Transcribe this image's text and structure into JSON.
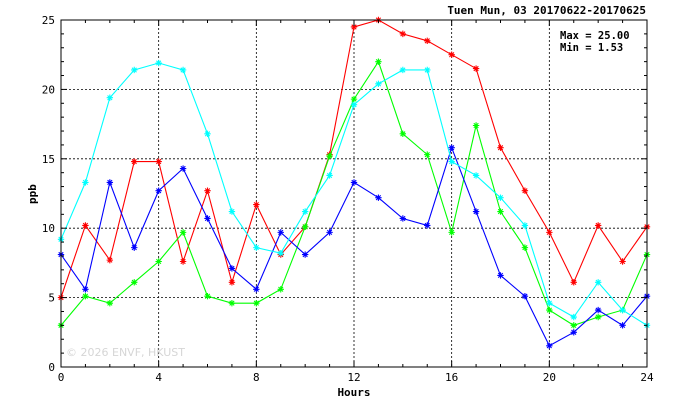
{
  "header": {
    "title": "Tuen Mun, 03 20170622-20170625"
  },
  "stats": {
    "max_label": "Max = 25.00",
    "min_label": "Min =  1.53"
  },
  "watermark": "© 2026  ENVF, HKUST",
  "chart_data": {
    "type": "line",
    "xlabel": "Hours",
    "ylabel": "ppb",
    "xlim": [
      0,
      24
    ],
    "ylim": [
      0,
      25
    ],
    "xticks": [
      0,
      4,
      8,
      12,
      16,
      20,
      24
    ],
    "yticks": [
      0,
      5,
      10,
      15,
      20,
      25
    ],
    "grid": true,
    "marker": "asterisk",
    "x": [
      0,
      1,
      2,
      3,
      4,
      5,
      6,
      7,
      8,
      9,
      10,
      11,
      12,
      13,
      14,
      15,
      16,
      17,
      18,
      19,
      20,
      21,
      22,
      23,
      24
    ],
    "series": [
      {
        "color": "#ff0000",
        "values": [
          5.0,
          10.2,
          7.7,
          14.8,
          14.8,
          7.6,
          12.7,
          6.1,
          11.7,
          8.1,
          10.1,
          15.3,
          24.5,
          25.0,
          24.0,
          23.5,
          22.5,
          21.5,
          15.8,
          12.7,
          9.7,
          6.1,
          10.2,
          7.6,
          10.1
        ]
      },
      {
        "color": "#00ff00",
        "values": [
          3.0,
          5.1,
          4.6,
          6.1,
          7.6,
          9.7,
          5.1,
          4.6,
          4.6,
          5.6,
          10.1,
          15.2,
          19.3,
          22.0,
          16.8,
          15.3,
          9.7,
          17.4,
          11.2,
          8.6,
          4.1,
          3.0,
          3.6,
          4.1,
          8.1
        ]
      },
      {
        "color": "#0000ff",
        "values": [
          8.1,
          5.6,
          13.3,
          8.6,
          12.7,
          14.3,
          10.7,
          7.1,
          5.6,
          9.7,
          8.1,
          9.7,
          13.3,
          12.2,
          10.7,
          10.2,
          15.8,
          11.2,
          6.6,
          5.1,
          1.53,
          2.5,
          4.1,
          3.0,
          5.1
        ]
      },
      {
        "color": "#00ffff",
        "values": [
          9.2,
          13.3,
          19.4,
          21.4,
          21.9,
          21.4,
          16.8,
          11.2,
          8.6,
          8.2,
          11.2,
          13.8,
          18.9,
          20.4,
          21.4,
          21.4,
          14.8,
          13.8,
          12.2,
          10.2,
          4.6,
          3.6,
          6.1,
          4.1,
          3.0
        ]
      }
    ]
  }
}
